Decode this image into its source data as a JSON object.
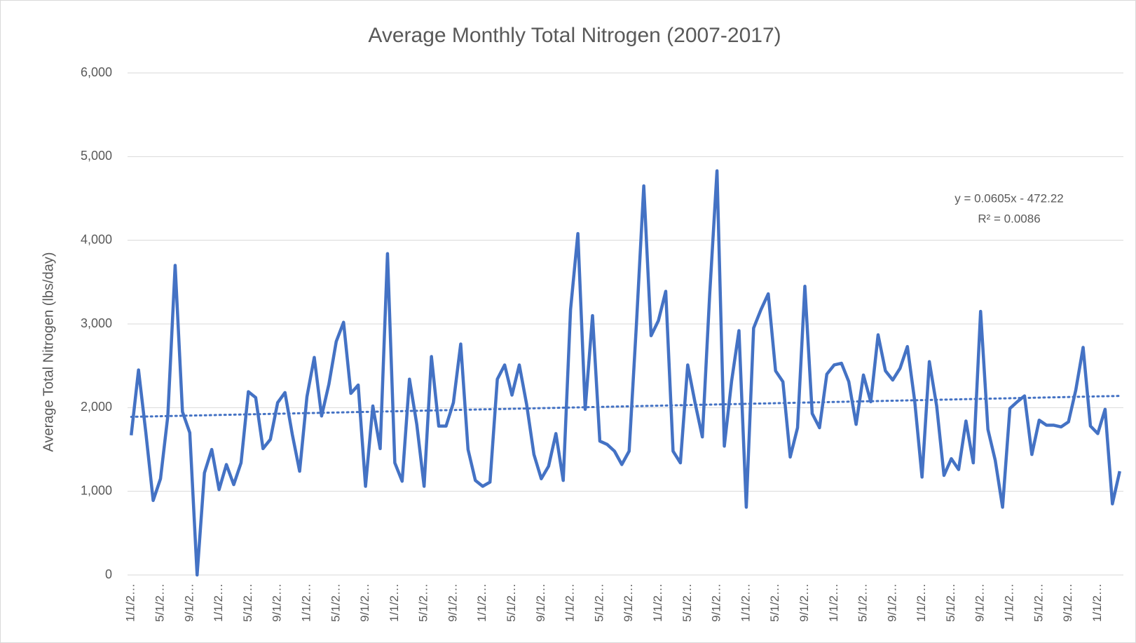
{
  "chart_data": {
    "type": "line",
    "title": "Average Monthly Total Nitrogen (2007-2017)",
    "y_label": "Average Total Nitrogen (lbs/day)",
    "categories": [
      "1/1/2…",
      null,
      null,
      null,
      "5/1/2…",
      null,
      null,
      null,
      "9/1/2…",
      null,
      null,
      null,
      "1/1/2…",
      null,
      null,
      null,
      "5/1/2…",
      null,
      null,
      null,
      "9/1/2…",
      null,
      null,
      null,
      "1/1/2…",
      null,
      null,
      null,
      "5/1/2…",
      null,
      null,
      null,
      "9/1/2…",
      null,
      null,
      null,
      "1/1/2…",
      null,
      null,
      null,
      "5/1/2…",
      null,
      null,
      null,
      "9/1/2…",
      null,
      null,
      null,
      "1/1/2…",
      null,
      null,
      null,
      "5/1/2…",
      null,
      null,
      null,
      "9/1/2…",
      null,
      null,
      null,
      "1/1/2…",
      null,
      null,
      null,
      "5/1/2…",
      null,
      null,
      null,
      "9/1/2…",
      null,
      null,
      null,
      "1/1/2…",
      null,
      null,
      null,
      "5/1/2…",
      null,
      null,
      null,
      "9/1/2…",
      null,
      null,
      null,
      "1/1/2…",
      null,
      null,
      null,
      "5/1/2…",
      null,
      null,
      null,
      "9/1/2…",
      null,
      null,
      null,
      "1/1/2…",
      null,
      null,
      null,
      "5/1/2…",
      null,
      null,
      null,
      "9/1/2…",
      null,
      null,
      null,
      "1/1/2…",
      null,
      null,
      null,
      "5/1/2…",
      null,
      null,
      null,
      "9/1/2…",
      null,
      null,
      null,
      "1/1/2…",
      null,
      null,
      null,
      "5/1/2…",
      null,
      null,
      null,
      "9/1/2…",
      null,
      null,
      null,
      "1/1/2…",
      null,
      null,
      null
    ],
    "series": [
      {
        "name": "Average Total Nitrogen",
        "color": "#4472c4",
        "values": [
          1670,
          2450,
          1700,
          890,
          1150,
          1900,
          3700,
          1950,
          1700,
          0,
          1220,
          1500,
          1020,
          1320,
          1080,
          1340,
          2190,
          2120,
          1510,
          1620,
          2060,
          2180,
          1680,
          1240,
          2130,
          2600,
          1900,
          2280,
          2790,
          3020,
          2170,
          2270,
          1060,
          2020,
          1510,
          3840,
          1340,
          1120,
          2340,
          1800,
          1060,
          2610,
          1780,
          1780,
          2060,
          2760,
          1500,
          1130,
          1060,
          1110,
          2340,
          2510,
          2150,
          2510,
          2040,
          1440,
          1150,
          1300,
          1690,
          1130,
          3170,
          4080,
          1980,
          3100,
          1600,
          1560,
          1480,
          1320,
          1480,
          3000,
          4650,
          2860,
          3040,
          3390,
          1480,
          1340,
          2510,
          2060,
          1650,
          3350,
          4830,
          1540,
          2320,
          2920,
          810,
          2950,
          3170,
          3360,
          2440,
          2310,
          1410,
          1760,
          3450,
          1930,
          1760,
          2400,
          2510,
          2530,
          2310,
          1800,
          2390,
          2070,
          2870,
          2440,
          2330,
          2470,
          2730,
          2080,
          1170,
          2550,
          2020,
          1190,
          1390,
          1260,
          1840,
          1340,
          3150,
          1740,
          1370,
          810,
          1990,
          2070,
          2140,
          1440,
          1850,
          1790,
          1790,
          1770,
          1830,
          2210,
          2720,
          1780,
          1690,
          1980,
          850,
          1240
        ]
      }
    ],
    "trendline": {
      "equation": "y = 0.0605x - 472.22",
      "r_squared": "R² = 0.0086",
      "start": 1890,
      "end": 2140
    },
    "ylim": [
      0,
      6000
    ],
    "yticks": [
      {
        "value": 0,
        "label": "0"
      },
      {
        "value": 1000,
        "label": "1,000"
      },
      {
        "value": 2000,
        "label": "2,000"
      },
      {
        "value": 3000,
        "label": "3,000"
      },
      {
        "value": 4000,
        "label": "4,000"
      },
      {
        "value": 5000,
        "label": "5,000"
      },
      {
        "value": 6000,
        "label": "6,000"
      }
    ],
    "grid": true
  }
}
